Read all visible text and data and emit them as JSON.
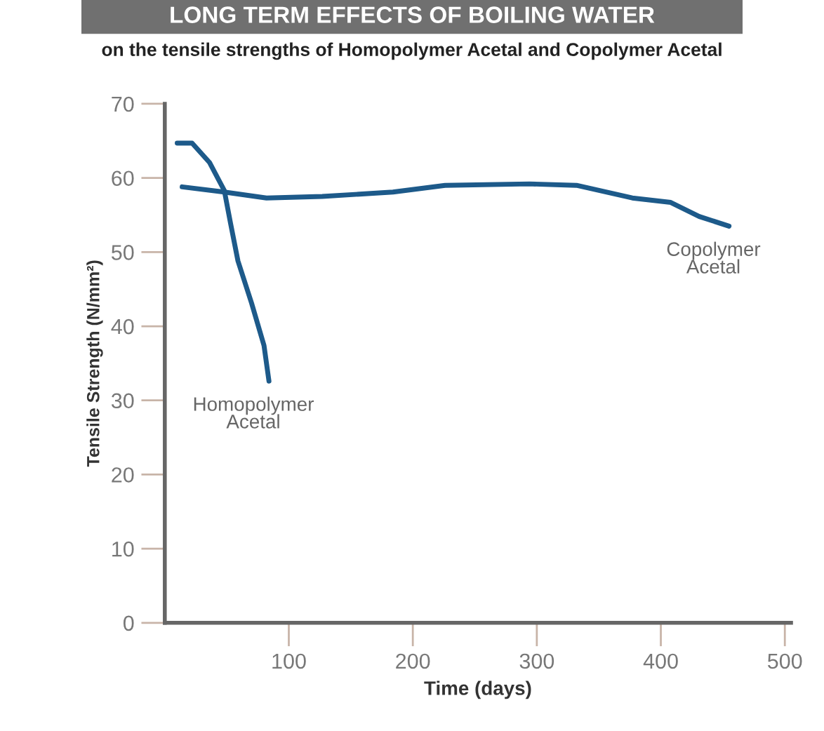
{
  "chart_data": {
    "type": "line",
    "title": "LONG TERM EFFECTS OF BOILING WATER",
    "subtitle": "on the tensile strengths of Homopolymer Acetal and Copolymer Acetal",
    "xlabel": "Time (days)",
    "ylabel": "Tensile Strength (N/mm²)",
    "series": [
      {
        "name": "Homopolymer\nAcetal",
        "color": "#1d5a8a",
        "x": [
          10,
          22,
          36,
          48,
          53,
          59,
          70,
          80,
          84
        ],
        "values": [
          64.7,
          64.7,
          62.1,
          58.3,
          53.9,
          48.8,
          43.1,
          37.4,
          32.6
        ]
      },
      {
        "name": "Copolymer\nAcetal",
        "color": "#1d5a8a",
        "x": [
          14,
          48,
          82,
          127,
          184,
          226,
          294,
          332,
          377,
          408,
          431,
          455
        ],
        "values": [
          58.8,
          58.1,
          57.3,
          57.5,
          58.1,
          59.0,
          59.2,
          59.0,
          57.3,
          56.7,
          54.8,
          53.5
        ]
      }
    ],
    "xlim": [
      0,
      505
    ],
    "ylim": [
      0,
      70
    ],
    "xticks": [
      100,
      200,
      300,
      400,
      500
    ],
    "yticks": [
      0,
      10,
      20,
      30,
      40,
      50,
      60,
      70
    ],
    "grid": false,
    "legend": false,
    "marker": "none",
    "line_style": "solid"
  }
}
